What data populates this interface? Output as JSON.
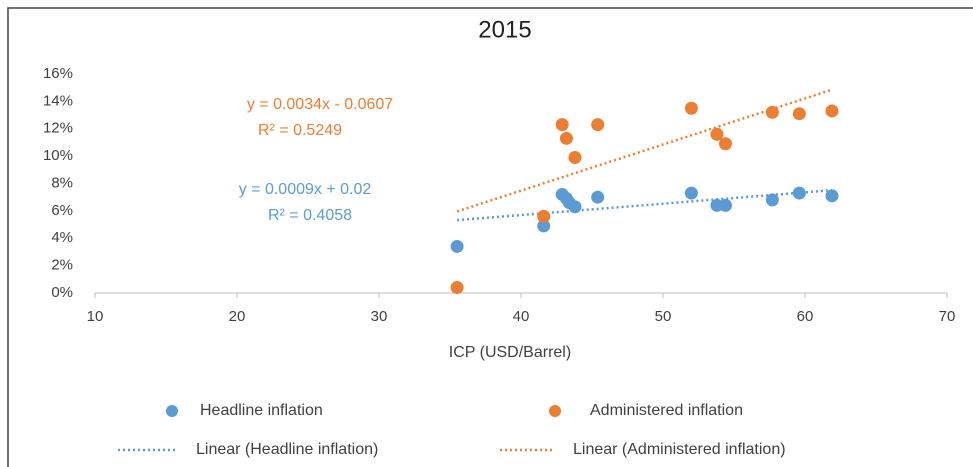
{
  "chart_data": {
    "type": "scatter",
    "title": "2015",
    "x_label": "ICP (USD/Barrel)",
    "xlim": [
      10,
      70
    ],
    "xticks": [
      10,
      20,
      30,
      40,
      50,
      60,
      70
    ],
    "ylim": [
      0,
      16
    ],
    "yticks": [
      {
        "value": 0,
        "label": "0%"
      },
      {
        "value": 2,
        "label": "2%"
      },
      {
        "value": 4,
        "label": "4%"
      },
      {
        "value": 6,
        "label": "6%"
      },
      {
        "value": 8,
        "label": "8%"
      },
      {
        "value": 10,
        "label": "10%"
      },
      {
        "value": 12,
        "label": "12%"
      },
      {
        "value": 14,
        "label": "14%"
      },
      {
        "value": 16,
        "label": "16%"
      }
    ],
    "grid": false,
    "series": [
      {
        "name": "Headline inflation",
        "color": "#5b9bd5",
        "x": [
          35.5,
          41.6,
          42.9,
          43.2,
          43.4,
          43.8,
          45.4,
          52.0,
          53.8,
          54.4,
          57.7,
          59.6,
          61.9
        ],
        "values": [
          3.4,
          4.9,
          7.2,
          6.9,
          6.6,
          6.3,
          7.0,
          7.3,
          6.4,
          6.4,
          6.8,
          7.3,
          7.1
        ],
        "trendline_label": "Linear (Headline inflation)",
        "equation": "y = 0.0009x + 0.02",
        "r_squared": "R² = 0.4058"
      },
      {
        "name": "Administered inflation",
        "color": "#ed7d31",
        "x": [
          35.5,
          41.6,
          42.9,
          43.2,
          43.8,
          45.4,
          52.0,
          53.8,
          54.4,
          57.7,
          59.6,
          61.9
        ],
        "values": [
          0.4,
          5.6,
          12.3,
          11.3,
          9.9,
          12.3,
          13.5,
          11.6,
          10.9,
          13.2,
          13.1,
          13.3
        ],
        "trendline_label": "Linear (Administered inflation)",
        "equation": "y = 0.0034x - 0.0607",
        "r_squared": "R² = 0.5249"
      }
    ]
  }
}
